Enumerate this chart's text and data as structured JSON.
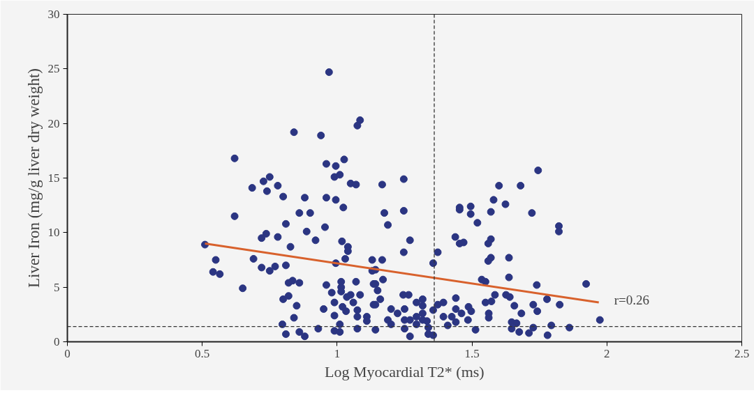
{
  "chart_data": {
    "type": "scatter",
    "xlabel": "Log Myocardial T2* (ms)",
    "ylabel": "Liver Iron (mg/g liver dry weight)",
    "xlim": [
      0,
      2.5
    ],
    "ylim": [
      0,
      30
    ],
    "xticks": [
      0,
      0.5,
      1,
      1.5,
      2,
      2.5
    ],
    "yticks": [
      0,
      5,
      10,
      15,
      20,
      25,
      30
    ],
    "grid": false,
    "marker": "circle",
    "series": [
      {
        "color": "#2b3582",
        "x": [
          0.97,
          1.085,
          1.075,
          0.84,
          0.94,
          0.62,
          0.96,
          0.995,
          1.026,
          0.99,
          1.01,
          1.05,
          1.07,
          0.685,
          0.727,
          0.75,
          0.74,
          0.78,
          0.8,
          0.88,
          0.96,
          0.995,
          1.023,
          0.62,
          0.86,
          0.9,
          0.81,
          0.955,
          0.737,
          0.72,
          0.78,
          0.887,
          0.92,
          1.018,
          1.04,
          1.04,
          1.03,
          0.827,
          0.51,
          0.55,
          0.54,
          0.565,
          0.69,
          0.65,
          0.72,
          0.75,
          0.77,
          0.81,
          0.995,
          1.13,
          0.82,
          0.835,
          0.86,
          0.8,
          0.82,
          0.85,
          0.84,
          0.797,
          0.81,
          0.86,
          0.88,
          0.93,
          0.95,
          0.96,
          0.98,
          1.015,
          1.015,
          1.015,
          1.07,
          1.085,
          0.99,
          1.036,
          1.05,
          1.06,
          1.02,
          1.033,
          1.075,
          1.075,
          1.11,
          1.11,
          0.99,
          1.01,
          0.99,
          1.01,
          1.075,
          1.13,
          1.135,
          1.135,
          1.167,
          1.247,
          1.175,
          1.247,
          1.188,
          1.27,
          1.247,
          1.167,
          1.142,
          1.17,
          1.142,
          1.15,
          1.16,
          1.142,
          1.2,
          1.224,
          1.245,
          1.265,
          1.25,
          1.188,
          1.2,
          1.25,
          1.27,
          1.25,
          1.142,
          1.27,
          1.294,
          1.317,
          1.317,
          1.294,
          1.317,
          1.317,
          1.333,
          1.294,
          1.338,
          1.338,
          1.356,
          1.356,
          1.356,
          1.373,
          1.373,
          1.394,
          1.394,
          1.425,
          1.44,
          1.44,
          1.461,
          1.487,
          1.497,
          1.485,
          1.44,
          1.41,
          1.513,
          1.438,
          1.454,
          1.469,
          1.454,
          1.454,
          1.495,
          1.495,
          1.52,
          1.536,
          1.55,
          1.55,
          1.572,
          1.585,
          1.562,
          1.562,
          1.56,
          1.57,
          1.56,
          1.57,
          1.57,
          1.58,
          1.6,
          1.745,
          1.68,
          1.624,
          1.722,
          1.822,
          1.822,
          1.637,
          1.637,
          1.74,
          1.923,
          1.626,
          1.64,
          1.657,
          1.727,
          1.778,
          1.825,
          1.742,
          1.683,
          1.647,
          1.665,
          1.647,
          1.675,
          1.727,
          1.711,
          1.794,
          1.78,
          1.861,
          1.974
        ],
        "values": [
          24.7,
          20.3,
          19.8,
          19.2,
          18.9,
          16.8,
          16.3,
          16.1,
          16.7,
          15.1,
          15.3,
          14.5,
          14.4,
          14.1,
          14.7,
          15.1,
          13.8,
          14.3,
          13.3,
          13.2,
          13.2,
          13.0,
          12.3,
          11.5,
          11.8,
          11.8,
          10.8,
          10.5,
          9.9,
          9.5,
          9.6,
          10.1,
          9.3,
          9.2,
          8.7,
          8.3,
          7.6,
          8.7,
          8.9,
          7.5,
          6.4,
          6.2,
          7.6,
          4.9,
          6.8,
          6.5,
          6.9,
          7.0,
          7.2,
          7.5,
          5.4,
          5.6,
          5.4,
          3.9,
          4.2,
          3.3,
          2.2,
          1.6,
          0.7,
          0.9,
          0.5,
          1.2,
          3.0,
          5.2,
          4.5,
          5.5,
          5.0,
          4.6,
          5.5,
          4.3,
          3.6,
          4.1,
          4.3,
          3.6,
          3.2,
          2.8,
          2.9,
          2.3,
          2.3,
          1.9,
          2.4,
          1.6,
          1.0,
          0.9,
          1.2,
          6.5,
          5.3,
          3.4,
          14.4,
          14.9,
          11.8,
          12.0,
          10.7,
          9.3,
          8.2,
          7.5,
          6.6,
          5.7,
          5.3,
          4.7,
          3.9,
          3.4,
          3.0,
          2.6,
          4.3,
          4.3,
          3.0,
          2.0,
          1.6,
          2.0,
          2.0,
          1.2,
          1.1,
          0.5,
          3.6,
          3.9,
          3.3,
          2.3,
          2.6,
          2.0,
          1.9,
          1.6,
          1.3,
          0.7,
          0.6,
          2.9,
          7.2,
          8.2,
          3.4,
          3.6,
          2.3,
          2.3,
          4.0,
          3.0,
          2.6,
          3.2,
          2.8,
          2.0,
          1.8,
          1.5,
          1.1,
          9.6,
          9.0,
          9.1,
          12.3,
          12.1,
          12.4,
          11.7,
          10.9,
          5.7,
          5.5,
          3.6,
          3.7,
          4.3,
          2.6,
          2.2,
          9.0,
          9.4,
          7.4,
          7.7,
          11.9,
          13.0,
          14.3,
          15.7,
          14.3,
          12.6,
          11.8,
          10.6,
          10.1,
          7.7,
          5.9,
          5.2,
          5.3,
          4.3,
          4.1,
          3.3,
          3.4,
          3.9,
          3.4,
          2.8,
          2.6,
          1.8,
          1.7,
          1.2,
          0.9,
          1.3,
          0.8,
          1.5,
          0.6,
          1.3,
          2.0
        ]
      },
      {
        "type": "line",
        "color": "#d8612c",
        "x": [
          0.51,
          1.97
        ],
        "values": [
          9.0,
          3.6
        ],
        "marker": "none",
        "line_style": "solid"
      }
    ],
    "ref_lines": [
      {
        "axis": "x",
        "value": 1.36,
        "label": null,
        "color": "#333333",
        "line_style": "dashed"
      },
      {
        "axis": "y",
        "value": 1.4,
        "label": null,
        "color": "#333333",
        "line_style": "dashed"
      }
    ],
    "annotations": [
      "r=0.26"
    ]
  }
}
